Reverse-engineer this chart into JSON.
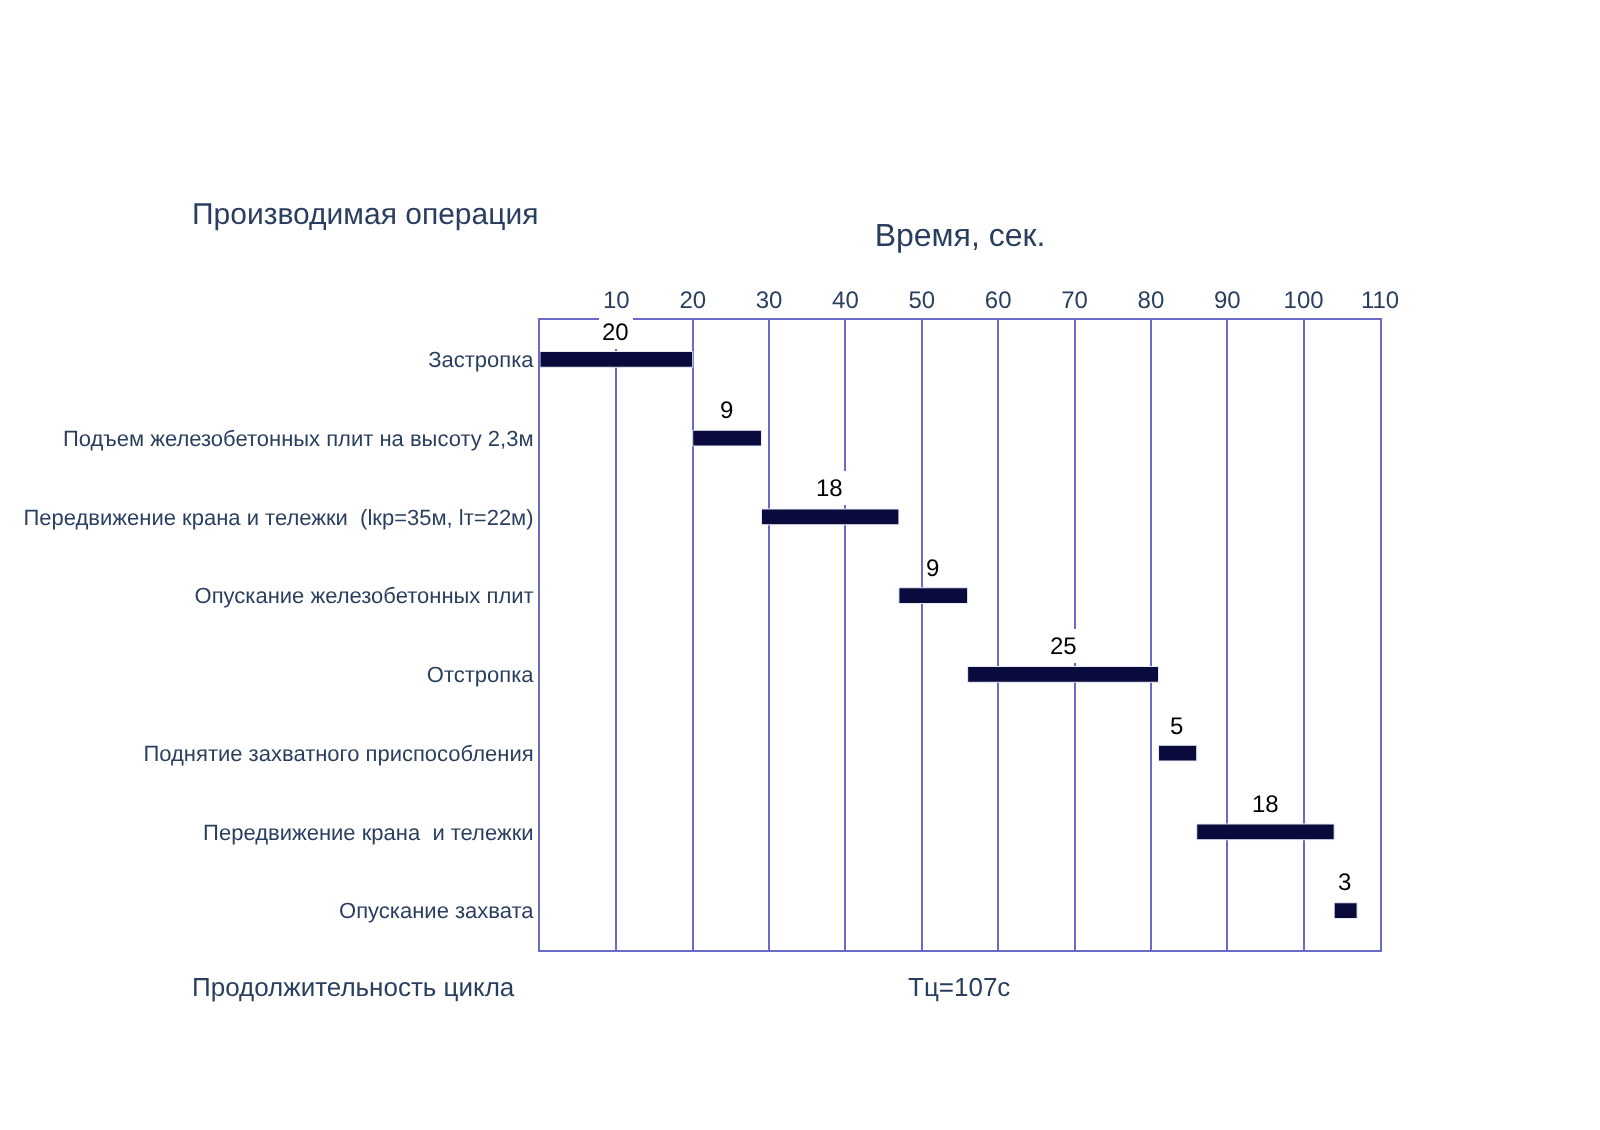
{
  "chart_data": {
    "type": "bar",
    "orientation": "horizontal",
    "xlabel": "Время, сек.",
    "ylabel": "Производимая операция",
    "categories": [
      "Застропка",
      "Подъем железобетонных плит на высоту 2,3м",
      "Передвижение крана и тележки  (lкр=35м, lт=22м)",
      "Опускание железобетонных плит",
      "Отстропка",
      "Поднятие захватного приспособления",
      "Передвижение крана  и тележки",
      "Опускание захвата"
    ],
    "values": [
      20,
      9,
      18,
      9,
      25,
      5,
      18,
      3
    ],
    "base": [
      0,
      20,
      29,
      47,
      56,
      81,
      86,
      104
    ],
    "color": "#0a0a3c",
    "data_labels": true,
    "xlim": [
      0,
      110
    ],
    "xticks": [
      10,
      20,
      30,
      40,
      50,
      60,
      70,
      80,
      90,
      100,
      110
    ],
    "grid": "x",
    "annotations": [
      "Продолжительность цикла",
      "Тц=107с"
    ]
  }
}
